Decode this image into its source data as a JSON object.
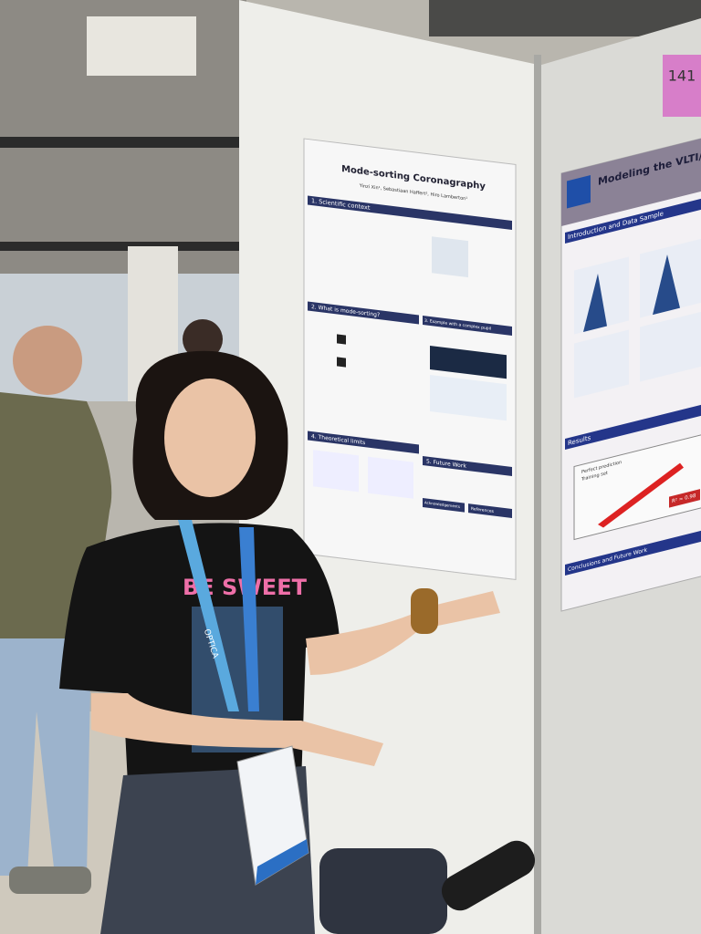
{
  "scene": {
    "left_poster": {
      "title": "Mode-sorting Coronagraphy",
      "authors": "Yinzi Xin¹, Sebastiaan Haffert², Hiro Lamberton¹",
      "sections": [
        "1. Scientific context",
        "2. What is mode-sorting?",
        "3. Example with a complex pupil",
        "4. Theoretical limits",
        "5. Future Work",
        "Acknowledgements",
        "References"
      ]
    },
    "right_poster": {
      "title": "Modeling the VLTI/",
      "sections": [
        "Introduction and Data Sample",
        "Results",
        "Conclusions and Future Work"
      ],
      "legend": [
        "Perfect prediction",
        "Training set"
      ],
      "score": "R² = 0.98"
    },
    "board_number": "141",
    "lanyard": "OPTICA",
    "shirt": "BE SWEET"
  }
}
